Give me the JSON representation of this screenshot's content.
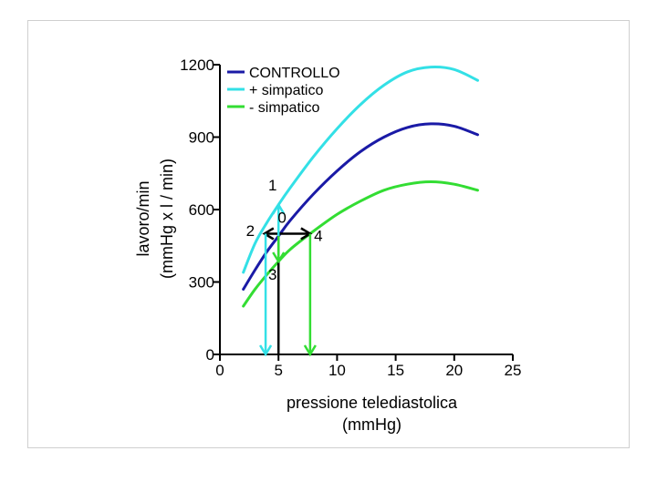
{
  "chart_data": {
    "type": "line",
    "title": "",
    "xlabel": [
      "pressione telediastolica",
      "(mmHg)"
    ],
    "ylabel": [
      "lavoro/min",
      "(mmHg x l / min)"
    ],
    "xlim": [
      0,
      25
    ],
    "ylim": [
      0,
      1200
    ],
    "x_ticks": [
      0,
      5,
      10,
      15,
      20,
      25
    ],
    "y_ticks": [
      0,
      300,
      600,
      900,
      1200
    ],
    "x_tick_labels": [
      "0",
      "5",
      "10",
      "15",
      "20",
      "25"
    ],
    "y_tick_labels": [
      "0",
      "300",
      "600",
      "900",
      "1200"
    ],
    "grid": false,
    "legend_position": "top-left",
    "series": [
      {
        "name": "CONTROLLO",
        "color": "#1a1aa6",
        "x": [
          2,
          3,
          4,
          5,
          6,
          8,
          10,
          12,
          14,
          16,
          18,
          20,
          22
        ],
        "y": [
          270,
          350,
          425,
          490,
          555,
          665,
          760,
          840,
          900,
          940,
          955,
          945,
          910
        ]
      },
      {
        "name": "+ simpatico",
        "color": "#33e0e6",
        "x": [
          2,
          3,
          4,
          5,
          6,
          8,
          10,
          12,
          14,
          16,
          18,
          20,
          22
        ],
        "y": [
          340,
          460,
          545,
          620,
          690,
          820,
          935,
          1035,
          1115,
          1170,
          1190,
          1180,
          1135
        ]
      },
      {
        "name": "- simpatico",
        "color": "#33dd33",
        "x": [
          2,
          3,
          4,
          5,
          6,
          7.7,
          10,
          12,
          14,
          16,
          18,
          20,
          22
        ],
        "y": [
          200,
          270,
          330,
          385,
          435,
          500,
          580,
          635,
          680,
          705,
          715,
          705,
          680
        ]
      }
    ],
    "annotations": {
      "markers": [
        {
          "label": "0",
          "x": 5.3,
          "y": 545
        },
        {
          "label": "1",
          "x": 4.5,
          "y": 680
        },
        {
          "label": "2",
          "x": 2.6,
          "y": 490
        },
        {
          "label": "3",
          "x": 4.5,
          "y": 310
        },
        {
          "label": "4",
          "x": 8.4,
          "y": 470
        }
      ],
      "lines": [
        {
          "color": "#000000",
          "x1": 5,
          "y1": 0,
          "x2": 5,
          "y2": 490,
          "heads": "none"
        },
        {
          "color": "#000000",
          "x1": 3.8,
          "y1": 500,
          "x2": 7.7,
          "y2": 500,
          "heads": "both"
        },
        {
          "color": "#33e0e6",
          "x1": 5,
          "y1": 490,
          "x2": 5,
          "y2": 620,
          "heads": "end"
        },
        {
          "color": "#33e0e6",
          "x1": 3.9,
          "y1": 500,
          "x2": 3.9,
          "y2": 0,
          "heads": "end"
        },
        {
          "color": "#33dd33",
          "x1": 5,
          "y1": 490,
          "x2": 5,
          "y2": 385,
          "heads": "end"
        },
        {
          "color": "#33dd33",
          "x1": 7.7,
          "y1": 500,
          "x2": 7.7,
          "y2": 0,
          "heads": "end"
        }
      ]
    }
  }
}
